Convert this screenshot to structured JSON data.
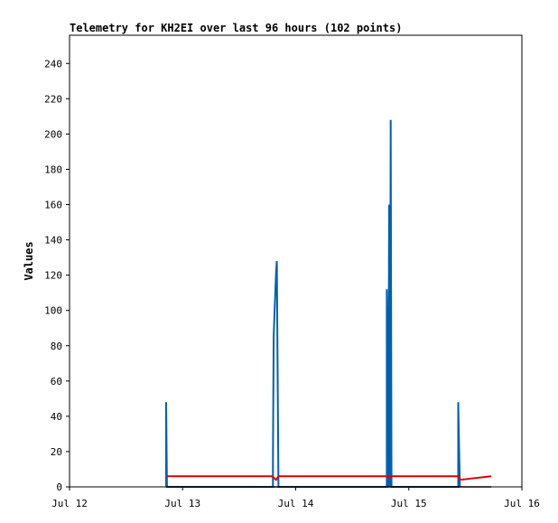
{
  "chart_data": {
    "type": "line",
    "title": "Telemetry for KH2EI over last 96 hours (102 points)",
    "xlabel": "",
    "ylabel": "Values",
    "x_ticks": [
      "Jul 12",
      "Jul 13",
      "Jul 14",
      "Jul 15",
      "Jul 16"
    ],
    "y_ticks": [
      0,
      20,
      40,
      60,
      80,
      100,
      120,
      140,
      160,
      180,
      200,
      220,
      240
    ],
    "xlim": [
      "Jul 12 00:00",
      "Jul 16 00:00"
    ],
    "ylim": [
      0,
      256
    ],
    "grid": false,
    "legend": "none",
    "series": [
      {
        "color": "#0060b0",
        "points": [
          [
            "Jul 12 20:30",
            0
          ],
          [
            "Jul 12 20:30",
            48
          ],
          [
            "Jul 12 20:40",
            0
          ],
          [
            "Jul 13 19:10",
            0
          ],
          [
            "Jul 13 19:10",
            16
          ],
          [
            "Jul 13 19:20",
            85
          ],
          [
            "Jul 13 19:30",
            98
          ],
          [
            "Jul 13 19:40",
            110
          ],
          [
            "Jul 13 19:50",
            122
          ],
          [
            "Jul 13 20:00",
            128
          ],
          [
            "Jul 13 20:10",
            64
          ],
          [
            "Jul 13 20:20",
            0
          ],
          [
            "Jul 14 19:20",
            0
          ],
          [
            "Jul 14 19:20",
            112
          ],
          [
            "Jul 14 19:30",
            80
          ],
          [
            "Jul 14 19:40",
            0
          ],
          [
            "Jul 14 19:50",
            160
          ],
          [
            "Jul 14 20:00",
            0
          ],
          [
            "Jul 14 20:10",
            208
          ],
          [
            "Jul 14 20:20",
            0
          ],
          [
            "Jul 15 10:30",
            0
          ],
          [
            "Jul 15 10:30",
            48
          ],
          [
            "Jul 15 10:40",
            24
          ],
          [
            "Jul 15 10:50",
            0
          ]
        ]
      },
      {
        "color": "#e00000",
        "points": [
          [
            "Jul 12 20:40",
            6
          ],
          [
            "Jul 13 19:00",
            6
          ],
          [
            "Jul 13 19:50",
            4
          ],
          [
            "Jul 13 20:20",
            6
          ],
          [
            "Jul 14 19:20",
            6
          ],
          [
            "Jul 14 20:00",
            5
          ],
          [
            "Jul 14 20:20",
            6
          ],
          [
            "Jul 15 10:40",
            6
          ],
          [
            "Jul 15 10:50",
            4
          ],
          [
            "Jul 15 17:30",
            6
          ]
        ]
      },
      {
        "color": "#000000",
        "points": [
          [
            "Jul 12 20:30",
            0
          ],
          [
            "Jul 15 17:30",
            0
          ]
        ]
      }
    ]
  }
}
